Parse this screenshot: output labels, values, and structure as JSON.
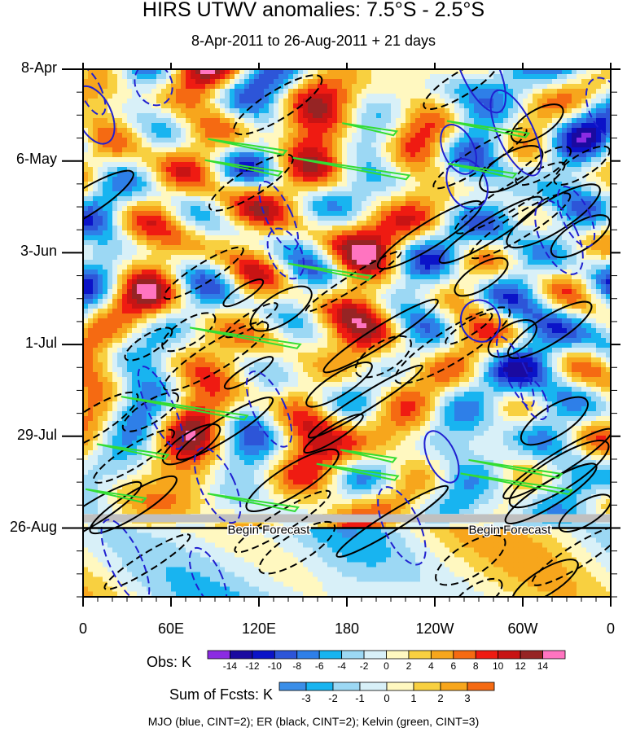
{
  "chart_data": {
    "type": "heatmap",
    "title": "HIRS UTWV anomalies: 7.5°S - 2.5°S",
    "subtitle": "8-Apr-2011 to 26-Aug-2011 + 21 days",
    "x_ticks": [
      "0",
      "60E",
      "120E",
      "180",
      "120W",
      "60W",
      "0"
    ],
    "x_range_deg_east": [
      0,
      360
    ],
    "y_ticks": [
      "8-Apr",
      "6-May",
      "3-Jun",
      "1-Jul",
      "29-Jul",
      "26-Aug"
    ],
    "y_range_days": [
      0,
      161
    ],
    "forecast_start_day": 140,
    "forecast_label": "Begin Forecast",
    "obs_colorbar": {
      "title": "Obs: K",
      "levels": [
        -14,
        -12,
        -10,
        -8,
        -6,
        -4,
        -2,
        0,
        2,
        4,
        6,
        8,
        10,
        12,
        14
      ],
      "labels": [
        "-14",
        "-12",
        "-10",
        "-8",
        "-6",
        "-4",
        "-2",
        "0",
        "2",
        "4",
        "6",
        "8",
        "10",
        "12",
        "14"
      ],
      "colors": [
        "#8b2be2",
        "#1a0aa0",
        "#0b13c8",
        "#2d55d8",
        "#2e7fe8",
        "#18b4f0",
        "#9cd8f4",
        "#d8f0f8",
        "#fff8c0",
        "#f8d040",
        "#f7a61c",
        "#f56a12",
        "#ef1b12",
        "#c81414",
        "#962424",
        "#ff74c0"
      ]
    },
    "fcst_colorbar": {
      "title": "Sum of Fcsts: K",
      "levels": [
        -3,
        -2,
        -1,
        0,
        1,
        2,
        3
      ],
      "labels": [
        "-3",
        "-2",
        "-1",
        "0",
        "1",
        "2",
        "3"
      ],
      "colors": [
        "#3a8ee8",
        "#18b4f0",
        "#9cd8f4",
        "#d8f0f8",
        "#fff8c0",
        "#f8d040",
        "#f7a61c",
        "#f56a12"
      ]
    },
    "contour_legend": "MJO (blue, CINT=2); ER (black, CINT=2); Kelvin (green, CINT=3)",
    "contour_colors": {
      "mjo": "#2020d0",
      "er": "#000000",
      "kelvin": "#33dd33"
    }
  }
}
